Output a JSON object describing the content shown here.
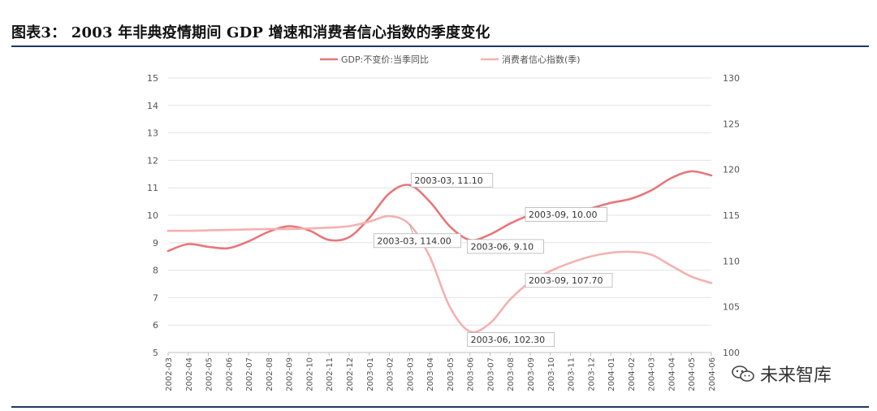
{
  "page": {
    "title": "图表3： 2003 年非典疫情期间 GDP 增速和消费者信心指数的季度变化",
    "watermark": "未来智库"
  },
  "chart_data": {
    "type": "line",
    "categories": [
      "2002-03",
      "2002-04",
      "2002-05",
      "2002-06",
      "2002-07",
      "2002-08",
      "2002-09",
      "2002-10",
      "2002-11",
      "2002-12",
      "2003-01",
      "2003-02",
      "2003-03",
      "2003-04",
      "2003-05",
      "2003-06",
      "2003-07",
      "2003-08",
      "2003-09",
      "2003-10",
      "2003-11",
      "2003-12",
      "2004-01",
      "2004-02",
      "2004-03",
      "2004-04",
      "2004-05",
      "2004-06"
    ],
    "y_left": {
      "min": 5,
      "max": 15,
      "ticks": [
        5,
        6,
        7,
        8,
        9,
        10,
        11,
        12,
        13,
        14,
        15
      ]
    },
    "y_right": {
      "min": 100,
      "max": 130,
      "ticks": [
        100,
        105,
        110,
        115,
        120,
        125,
        130
      ]
    },
    "grid": true,
    "legend_position": "top",
    "series": [
      {
        "name": "GDP:不变价:当季同比",
        "axis": "left",
        "color": "#e8767a",
        "values": [
          8.7,
          8.95,
          8.85,
          8.8,
          9.05,
          9.4,
          9.6,
          9.45,
          9.1,
          9.2,
          9.9,
          10.8,
          11.1,
          10.5,
          9.6,
          9.1,
          9.3,
          9.7,
          10.0,
          10.1,
          10.1,
          10.25,
          10.45,
          10.6,
          10.9,
          11.35,
          11.6,
          11.45
        ]
      },
      {
        "name": "消费者信心指数(季)",
        "axis": "right",
        "color": "#f5b0b0",
        "values": [
          113.3,
          113.3,
          113.35,
          113.4,
          113.45,
          113.5,
          113.5,
          113.55,
          113.65,
          113.8,
          114.3,
          114.9,
          114.0,
          110.5,
          105.0,
          102.3,
          103.2,
          105.8,
          107.7,
          108.9,
          109.8,
          110.5,
          110.9,
          111.0,
          110.7,
          109.5,
          108.3,
          107.6
        ]
      }
    ],
    "annotations": [
      {
        "label": "2003-03, 11.10",
        "series": 0,
        "index": 12
      },
      {
        "label": "2003-03, 114.00",
        "series": 1,
        "index": 12
      },
      {
        "label": "2003-06, 9.10",
        "series": 0,
        "index": 15
      },
      {
        "label": "2003-06, 102.30",
        "series": 1,
        "index": 15
      },
      {
        "label": "2003-09, 10.00",
        "series": 0,
        "index": 18
      },
      {
        "label": "2003-09, 107.70",
        "series": 1,
        "index": 18
      }
    ]
  }
}
